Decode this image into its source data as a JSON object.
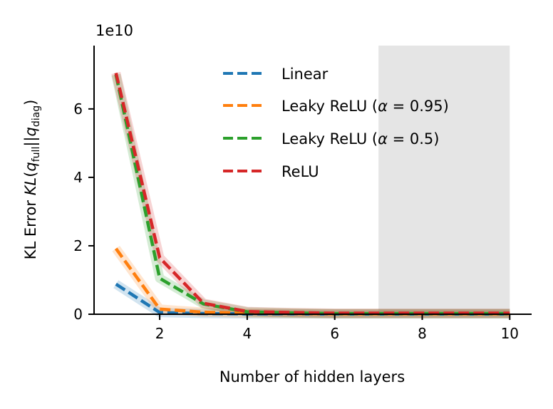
{
  "chart_data": {
    "type": "line",
    "xlabel": "Number of hidden layers",
    "ylabel_parts": {
      "prefix": "KL Error ",
      "kl": "KL",
      "open": "(",
      "q1": "q",
      "sub1": "full",
      "sep": "||",
      "q2": "q",
      "sub2": "diag",
      "close": ")"
    },
    "y_multiplier": "1e10",
    "xlim": [
      0.5,
      10.5
    ],
    "ylim": [
      0,
      7.85
    ],
    "xticks": [
      2,
      4,
      6,
      8,
      10
    ],
    "yticks": [
      0,
      2,
      4,
      6
    ],
    "shaded_region": [
      7,
      10
    ],
    "grid": false,
    "legend_position": "top-center",
    "x": [
      1,
      2,
      3,
      4,
      5,
      6,
      7,
      8,
      9,
      10
    ],
    "series": [
      {
        "name": "Linear",
        "color": "#1f77b4",
        "values": [
          0.88,
          0.05,
          0.02,
          0.01,
          0.01,
          0.005,
          0.005,
          0.005,
          0.005,
          0.005
        ]
      },
      {
        "name_prefix": "Leaky ReLU (",
        "name_alpha": "α",
        "name_value": " = 0.95)",
        "color": "#ff7f0e",
        "values": [
          1.92,
          0.15,
          0.06,
          0.03,
          0.02,
          0.01,
          0.01,
          0.01,
          0.01,
          0.01
        ]
      },
      {
        "name_prefix": "Leaky ReLU (",
        "name_alpha": "α",
        "name_value": " = 0.5)",
        "color": "#2ca02c",
        "values": [
          7.0,
          1.05,
          0.3,
          0.07,
          0.04,
          0.02,
          0.02,
          0.02,
          0.02,
          0.02
        ]
      },
      {
        "name": "ReLU",
        "color": "#d62728",
        "values": [
          7.05,
          1.65,
          0.32,
          0.08,
          0.05,
          0.03,
          0.03,
          0.03,
          0.03,
          0.03
        ]
      }
    ],
    "shade_color": "#e5e5e5"
  }
}
